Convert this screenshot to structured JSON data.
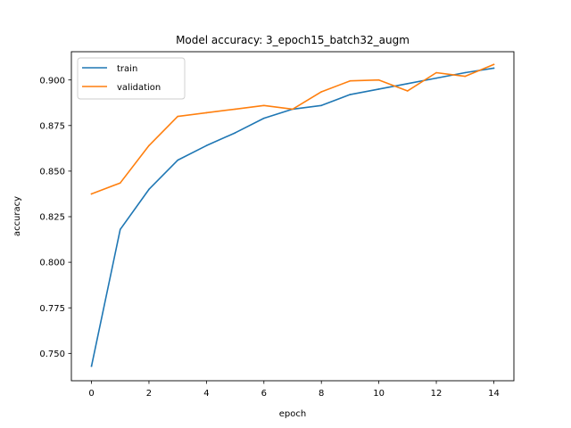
{
  "chart_data": {
    "type": "line",
    "title": "Model accuracy: 3_epoch15_batch32_augm",
    "xlabel": "epoch",
    "ylabel": "accuracy",
    "x": [
      0,
      1,
      2,
      3,
      4,
      5,
      6,
      7,
      8,
      9,
      10,
      11,
      12,
      13,
      14
    ],
    "series": [
      {
        "name": "train",
        "color": "#1f77b4",
        "values": [
          0.743,
          0.818,
          0.84,
          0.856,
          0.864,
          0.871,
          0.879,
          0.884,
          0.886,
          0.892,
          0.895,
          0.898,
          0.901,
          0.904,
          0.9065
        ]
      },
      {
        "name": "validation",
        "color": "#ff7f0e",
        "values": [
          0.8375,
          0.8435,
          0.864,
          0.88,
          0.882,
          0.884,
          0.886,
          0.884,
          0.8935,
          0.8995,
          0.9,
          0.894,
          0.904,
          0.902,
          0.9085
        ]
      }
    ],
    "xlim": [
      -0.7,
      14.7
    ],
    "ylim": [
      0.735,
      0.9155
    ],
    "xticks": [
      0,
      2,
      4,
      6,
      8,
      10,
      12,
      14
    ],
    "xtick_labels": [
      "0",
      "2",
      "4",
      "6",
      "8",
      "10",
      "12",
      "14"
    ],
    "yticks": [
      0.75,
      0.775,
      0.8,
      0.825,
      0.85,
      0.875,
      0.9
    ],
    "ytick_labels": [
      "0.750",
      "0.775",
      "0.800",
      "0.825",
      "0.850",
      "0.875",
      "0.900"
    ],
    "grid": false,
    "legend_position": "upper-left"
  }
}
